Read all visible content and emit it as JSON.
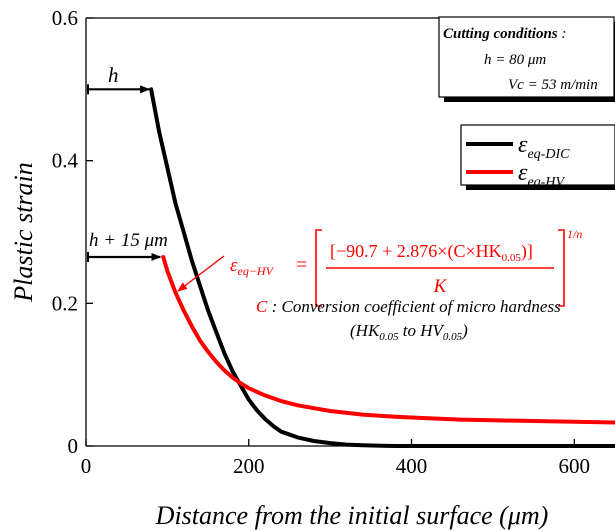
{
  "chart_data": {
    "type": "line",
    "xlabel": "Distance from the initial surface (μm)",
    "ylabel": "Plastic strain",
    "xlim": [
      0,
      650
    ],
    "ylim": [
      0,
      0.6
    ],
    "x_ticks": [
      0,
      200,
      400,
      600
    ],
    "y_ticks": [
      0,
      0.2,
      0.4,
      0.6
    ],
    "x_tick_labels": [
      "0",
      "200",
      "400",
      "600"
    ],
    "y_tick_labels": [
      "0",
      "0.2",
      "0.4",
      "0.6"
    ],
    "grid": false,
    "series": [
      {
        "name": "εeq-DIC",
        "label_main": "ε",
        "label_sub": "eq-DIC",
        "color": "#000000",
        "x": [
          80,
          90,
          100,
          110,
          120,
          130,
          140,
          150,
          160,
          170,
          180,
          190,
          200,
          210,
          220,
          230,
          240,
          260,
          280,
          300,
          320,
          340,
          380,
          420,
          500,
          650
        ],
        "y": [
          0.5,
          0.44,
          0.39,
          0.34,
          0.3,
          0.26,
          0.225,
          0.19,
          0.16,
          0.13,
          0.105,
          0.085,
          0.065,
          0.05,
          0.038,
          0.028,
          0.02,
          0.012,
          0.007,
          0.004,
          0.002,
          0.001,
          0,
          0,
          0,
          0
        ]
      },
      {
        "name": "εeq-HV",
        "label_main": "ε",
        "label_sub": "eq-HV",
        "color": "#ff0000",
        "x": [
          95,
          100,
          110,
          120,
          130,
          140,
          150,
          160,
          170,
          180,
          190,
          200,
          220,
          240,
          260,
          280,
          300,
          340,
          380,
          420,
          460,
          500,
          550,
          600,
          650
        ],
        "y": [
          0.265,
          0.245,
          0.215,
          0.19,
          0.168,
          0.148,
          0.132,
          0.118,
          0.106,
          0.096,
          0.088,
          0.081,
          0.071,
          0.063,
          0.057,
          0.053,
          0.049,
          0.044,
          0.041,
          0.039,
          0.037,
          0.036,
          0.035,
          0.034,
          0.033
        ]
      }
    ],
    "annotations": {
      "h_label": "h",
      "h15_label": "h + 15 μm",
      "h_arrow_y": 0.5,
      "h_arrow_x_end": 80,
      "h15_arrow_y": 0.265,
      "h15_arrow_x_end": 95,
      "formula_lhs_main": "ε",
      "formula_lhs_sub": "eq−HV",
      "formula_numerator": "[−90.7 + 2.876×(C×HK",
      "formula_numerator_sub": "0.05",
      "formula_numerator_close": ")]",
      "formula_denominator": "K",
      "formula_exponent": "1/n",
      "conversion_c": "C",
      "conversion_text": " : Conversion coefficient of micro hardness",
      "conversion_line2_a": "(HK",
      "conversion_line2_sub1": "0.05",
      "conversion_line2_b": " to HV",
      "conversion_line2_sub2": "0.05",
      "conversion_line2_c": ")"
    },
    "cutting_box": {
      "title": "Cutting conditions",
      "title_suffix": " :",
      "line1": "h = 80 μm",
      "line2": "Vc = 53 m/min"
    }
  }
}
